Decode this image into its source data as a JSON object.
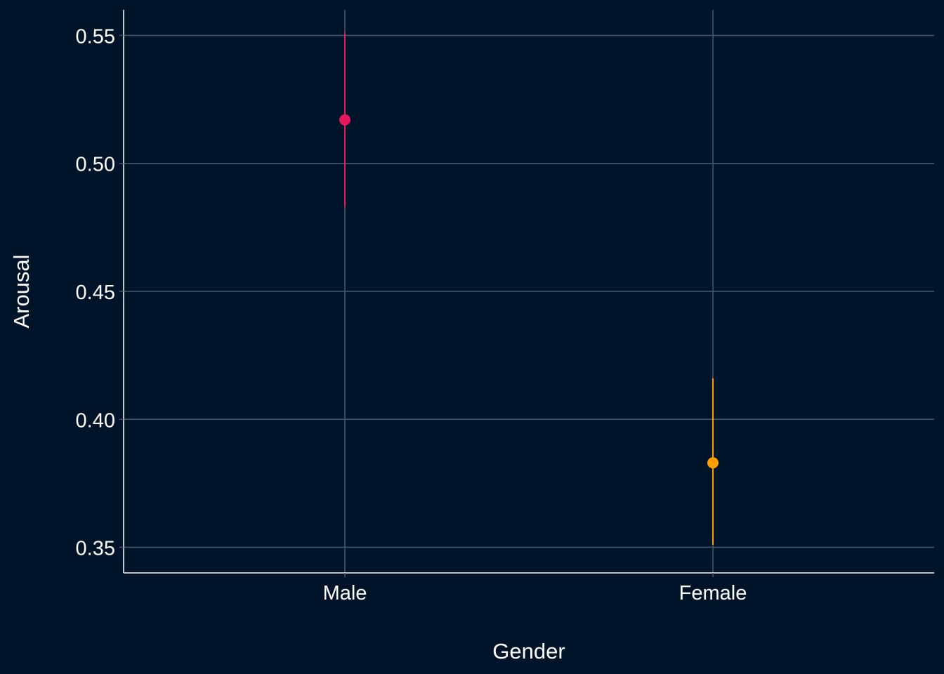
{
  "chart_data": {
    "type": "pointrange",
    "title": "",
    "xlabel": "Gender",
    "ylabel": "Arousal",
    "categories": [
      "Male",
      "Female"
    ],
    "ylim": [
      0.34,
      0.56
    ],
    "yticks": [
      0.35,
      0.4,
      0.45,
      0.5,
      0.55
    ],
    "ytick_labels": [
      "0.35",
      "0.40",
      "0.45",
      "0.50",
      "0.55"
    ],
    "grid": true,
    "legend": "none",
    "points": [
      {
        "category": "Male",
        "y": 0.517,
        "ymin": 0.483,
        "ymax": 0.551,
        "color": "#E8175D"
      },
      {
        "category": "Female",
        "y": 0.383,
        "ymin": 0.351,
        "ymax": 0.416,
        "color": "#FF9F00"
      }
    ],
    "colors": {
      "background": "#001429",
      "grid": "#4A5A6E",
      "axis": "#ffffff",
      "text": "#ffffff"
    }
  }
}
